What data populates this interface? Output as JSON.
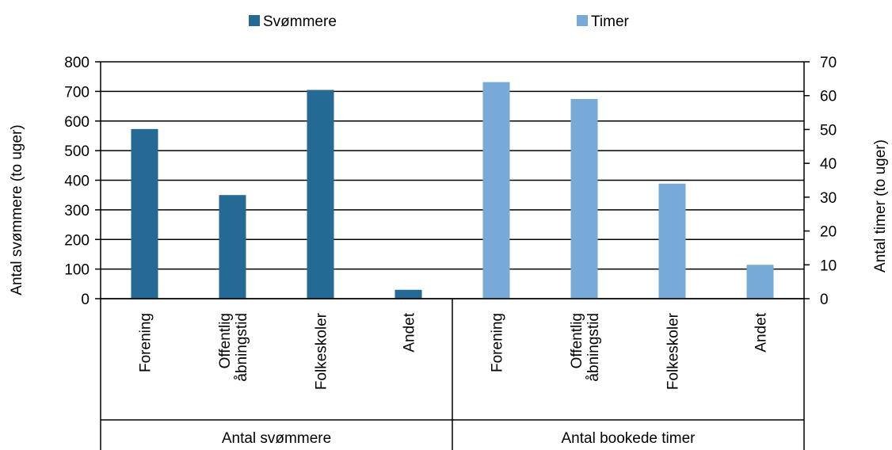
{
  "colors": {
    "series1": "#256A94",
    "series2": "#78AAD7",
    "grid": "#000000"
  },
  "legend": [
    {
      "label": "Svømmere",
      "color": "#256A94"
    },
    {
      "label": "Timer",
      "color": "#78AAD7"
    }
  ],
  "chart_data": {
    "type": "bar",
    "xlabel": "",
    "ylabel": "Antal svømmere (to uger)",
    "ylabel_right": "Antal timer (to uger)",
    "ylim": [
      0,
      800
    ],
    "ylim_right": [
      0,
      70
    ],
    "yticks": [
      "0",
      "100",
      "200",
      "300",
      "400",
      "500",
      "600",
      "700",
      "800"
    ],
    "yticks_right": [
      "0",
      "10",
      "20",
      "30",
      "40",
      "50",
      "60",
      "70"
    ],
    "grid": true,
    "legend_position": "top",
    "groups": [
      {
        "label": "Antal svømmere",
        "series": "Svømmere",
        "axis": "left",
        "categories": [
          [
            "Forening"
          ],
          [
            "Offentlig",
            "åbningstid"
          ],
          [
            "Folkeskoler"
          ],
          [
            "Andet"
          ]
        ],
        "values": [
          573,
          350,
          705,
          30
        ]
      },
      {
        "label": "Antal bookede timer",
        "series": "Timer",
        "axis": "right",
        "categories": [
          [
            "Forening"
          ],
          [
            "Offentlig",
            "åbningstid"
          ],
          [
            "Folkeskoler"
          ],
          [
            "Andet"
          ]
        ],
        "values": [
          64,
          59,
          34,
          10
        ]
      }
    ]
  }
}
